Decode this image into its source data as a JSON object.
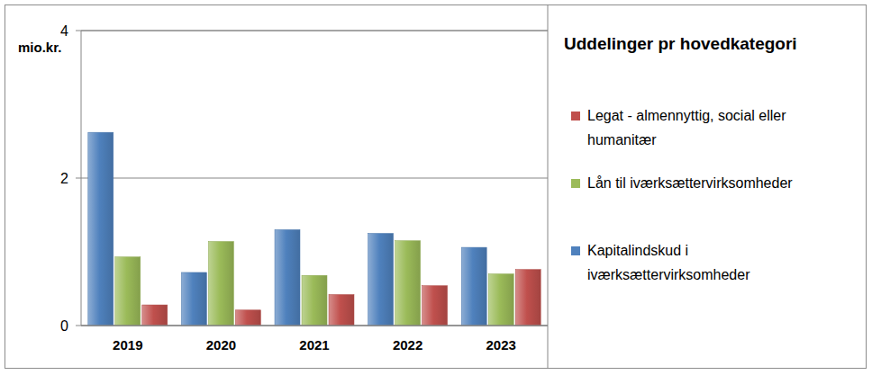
{
  "chart_data": {
    "type": "bar",
    "title": "Uddelinger pr hovedkategori",
    "y_label": "mio.kr.",
    "categories": [
      "2019",
      "2020",
      "2021",
      "2022",
      "2023"
    ],
    "series": [
      {
        "name": "Kapitalindskud i iværksættervirksomheder",
        "color": "#4f81bd",
        "values": [
          2.62,
          0.72,
          1.3,
          1.25,
          1.06
        ]
      },
      {
        "name": "Lån til iværksættervirksomheder",
        "color": "#9bbb59",
        "values": [
          0.93,
          1.14,
          0.68,
          1.15,
          0.7
        ]
      },
      {
        "name": "Legat - almennyttig, social eller humanitær",
        "color": "#c0504d",
        "values": [
          0.28,
          0.21,
          0.42,
          0.54,
          0.76
        ]
      }
    ],
    "ylim": [
      0,
      4
    ],
    "yticks": [
      0,
      2,
      4
    ],
    "grid": true,
    "legend": "right"
  }
}
